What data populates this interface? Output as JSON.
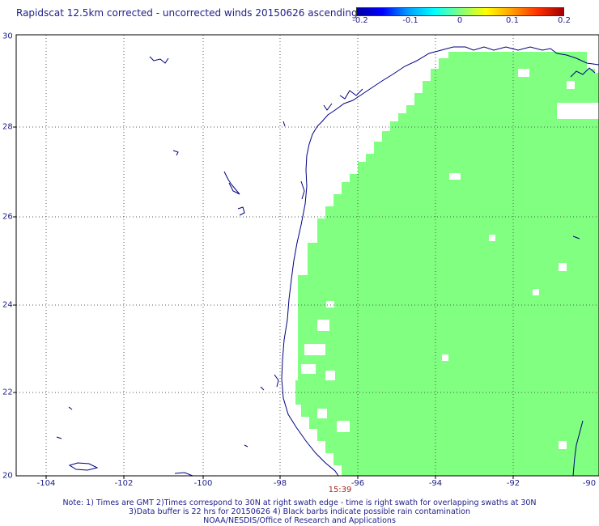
{
  "title": "Rapidscat 12.5km corrected - uncorrected winds 20150626 ascending",
  "colorbar": {
    "ticks": [
      "-0.2",
      "-0.1",
      "0",
      "0.1",
      "0.2"
    ],
    "colors": [
      "#0000a0",
      "#0000ff",
      "#00a0ff",
      "#00ffff",
      "#80ff80",
      "#ffff00",
      "#ffa000",
      "#ff3000",
      "#a00000"
    ]
  },
  "map": {
    "lon_range": [
      -104.5,
      -90
    ],
    "lat_range": [
      20,
      30
    ],
    "y_labels": [
      "30",
      "28",
      "26",
      "24",
      "22",
      "20"
    ],
    "x_labels": [
      "-104",
      "-102",
      "-100",
      "-98",
      "-96",
      "-94",
      "-92",
      "-90"
    ],
    "swath_color": "#80ff80",
    "coast_color": "#000080",
    "grid_color": "#555555"
  },
  "time_label": "15:39",
  "notes": [
    "Note: 1) Times are GMT 2)Times correspond to 30N at right swath edge - time is right swath for overlapping swaths at 30N",
    "3)Data buffer is 22 hrs for 20150626 4) Black barbs indicate possible rain contamination",
    "NOAA/NESDIS/Office of Research and Applications"
  ]
}
